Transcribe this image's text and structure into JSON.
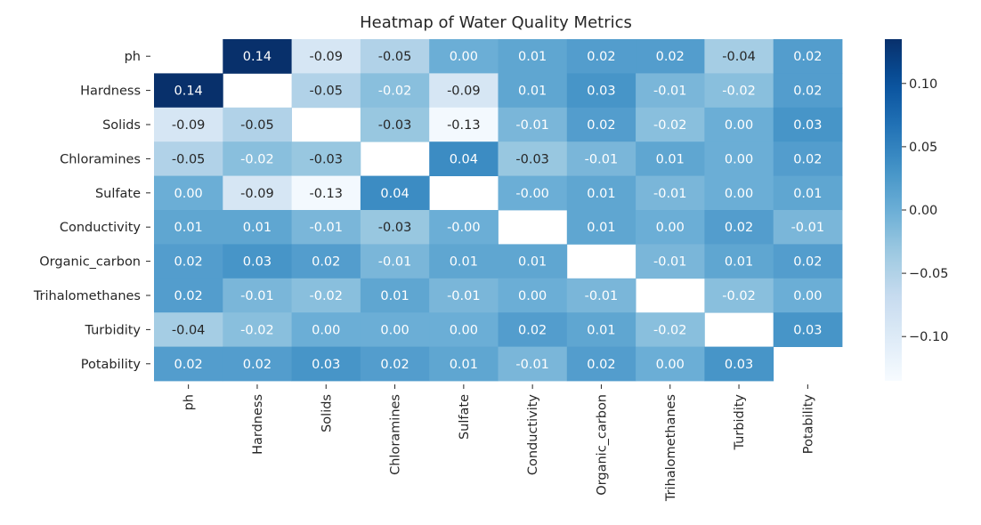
{
  "chart_data": {
    "type": "heatmap",
    "title": "Heatmap of Water Quality Metrics",
    "labels": [
      "ph",
      "Hardness",
      "Solids",
      "Chloramines",
      "Sulfate",
      "Conductivity",
      "Organic_carbon",
      "Trihalomethanes",
      "Turbidity",
      "Potability"
    ],
    "matrix": [
      [
        null,
        0.14,
        -0.09,
        -0.05,
        0.0,
        0.01,
        0.02,
        0.02,
        -0.04,
        0.02
      ],
      [
        0.14,
        null,
        -0.05,
        -0.02,
        -0.09,
        0.01,
        0.03,
        -0.01,
        -0.02,
        0.02
      ],
      [
        -0.09,
        -0.05,
        null,
        -0.03,
        -0.13,
        -0.01,
        0.02,
        -0.02,
        0.0,
        0.03
      ],
      [
        -0.05,
        -0.02,
        -0.03,
        null,
        0.04,
        -0.03,
        -0.01,
        0.01,
        0.0,
        0.02
      ],
      [
        0.0,
        -0.09,
        -0.13,
        0.04,
        null,
        -0.0,
        0.01,
        -0.01,
        0.0,
        0.01
      ],
      [
        0.01,
        0.01,
        -0.01,
        -0.03,
        -0.0,
        null,
        0.01,
        0.0,
        0.02,
        -0.01
      ],
      [
        0.02,
        0.03,
        0.02,
        -0.01,
        0.01,
        0.01,
        null,
        -0.01,
        0.01,
        0.02
      ],
      [
        0.02,
        -0.01,
        -0.02,
        0.01,
        -0.01,
        0.0,
        -0.01,
        null,
        -0.02,
        0.0
      ],
      [
        -0.04,
        -0.02,
        0.0,
        0.0,
        0.0,
        0.02,
        0.01,
        -0.02,
        null,
        0.03
      ],
      [
        0.02,
        0.02,
        0.03,
        0.02,
        0.01,
        -0.01,
        0.02,
        0.0,
        0.03,
        null
      ]
    ],
    "cell_labels": [
      [
        "",
        "0.14",
        "-0.09",
        "-0.05",
        "0.00",
        "0.01",
        "0.02",
        "0.02",
        "-0.04",
        "0.02"
      ],
      [
        "0.14",
        "",
        "-0.05",
        "-0.02",
        "-0.09",
        "0.01",
        "0.03",
        "-0.01",
        "-0.02",
        "0.02"
      ],
      [
        "-0.09",
        "-0.05",
        "",
        "-0.03",
        "-0.13",
        "-0.01",
        "0.02",
        "-0.02",
        "0.00",
        "0.03"
      ],
      [
        "-0.05",
        "-0.02",
        "-0.03",
        "",
        "0.04",
        "-0.03",
        "-0.01",
        "0.01",
        "0.00",
        "0.02"
      ],
      [
        "0.00",
        "-0.09",
        "-0.13",
        "0.04",
        "",
        "-0.00",
        "0.01",
        "-0.01",
        "0.00",
        "0.01"
      ],
      [
        "0.01",
        "0.01",
        "-0.01",
        "-0.03",
        "-0.00",
        "",
        "0.01",
        "0.00",
        "0.02",
        "-0.01"
      ],
      [
        "0.02",
        "0.03",
        "0.02",
        "-0.01",
        "0.01",
        "0.01",
        "",
        "-0.01",
        "0.01",
        "0.02"
      ],
      [
        "0.02",
        "-0.01",
        "-0.02",
        "0.01",
        "-0.01",
        "0.00",
        "-0.01",
        "",
        "-0.02",
        "0.00"
      ],
      [
        "-0.04",
        "-0.02",
        "0.00",
        "0.00",
        "0.00",
        "0.02",
        "0.01",
        "-0.02",
        "",
        "0.03"
      ],
      [
        "0.02",
        "0.02",
        "0.03",
        "0.02",
        "0.01",
        "-0.01",
        "0.02",
        "0.00",
        "0.03",
        ""
      ]
    ],
    "colormap": "Blues",
    "vmin": -0.135,
    "vmax": 0.135,
    "colorbar_ticks": [
      0.1,
      0.05,
      0.0,
      -0.05,
      -0.1
    ],
    "colorbar_tick_labels": [
      "0.10",
      "0.05",
      "0.00",
      "−0.05",
      "−0.10"
    ],
    "colors": {
      "low": "#f7fbff",
      "high": "#08306b",
      "text_dark": "#262626",
      "text_light": "#ffffff"
    }
  }
}
